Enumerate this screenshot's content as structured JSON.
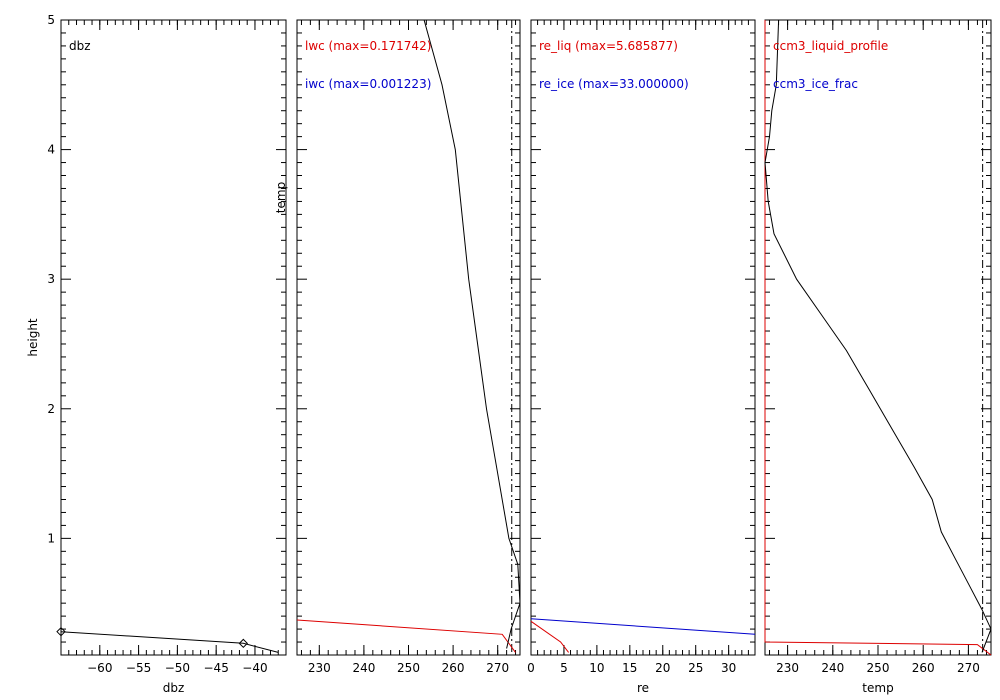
{
  "chart_data": [
    {
      "type": "line",
      "title": "",
      "xlabel": "dbz",
      "ylabel": "height",
      "xlim": [
        -65,
        -36
      ],
      "ylim": [
        0.1,
        5
      ],
      "xticks": [
        -60,
        -55,
        -50,
        -45,
        -40
      ],
      "yticks": [
        1,
        2,
        3,
        4,
        5
      ],
      "legend_position": "top-left",
      "series": [
        {
          "name": "dbz",
          "label_color": "#000000",
          "color": "#000000",
          "marker": "diamond",
          "points": [
            {
              "x": -65,
              "y": 0.28,
              "marker": true
            },
            {
              "x": -41.5,
              "y": 0.19,
              "marker": true
            },
            {
              "x": -37,
              "y": 0.12,
              "marker": false
            }
          ]
        }
      ]
    },
    {
      "type": "line",
      "title": "",
      "xlabel": "",
      "ylabel": "temp",
      "xlim": [
        225,
        275
      ],
      "ylim": [
        0.1,
        5
      ],
      "xticks": [
        230,
        240,
        250,
        260,
        270
      ],
      "yticks": [
        1,
        2,
        3,
        4,
        5
      ],
      "legend_position": "top-left",
      "vlines": [
        273.15
      ],
      "legend_only": [
        {
          "name": "iwc (max=0.001223)",
          "color": "#0000cc"
        }
      ],
      "series": [
        {
          "name": "lwc (max=0.171742)",
          "color": "#dd0000",
          "points": [
            {
              "x": 225,
              "y": 0.37
            },
            {
              "x": 271,
              "y": 0.26
            },
            {
              "x": 274,
              "y": 0.12
            }
          ]
        },
        {
          "name": "",
          "color": "#000000",
          "points": [
            {
              "x": 253.5,
              "y": 5.0
            },
            {
              "x": 257.5,
              "y": 4.5
            },
            {
              "x": 260.5,
              "y": 4.0
            },
            {
              "x": 262,
              "y": 3.5
            },
            {
              "x": 263.5,
              "y": 3.0
            },
            {
              "x": 265.5,
              "y": 2.5
            },
            {
              "x": 267.5,
              "y": 2.0
            },
            {
              "x": 270,
              "y": 1.5
            },
            {
              "x": 272.5,
              "y": 1.0
            },
            {
              "x": 274.5,
              "y": 0.8
            },
            {
              "x": 275,
              "y": 0.5
            },
            {
              "x": 273,
              "y": 0.3
            },
            {
              "x": 272,
              "y": 0.15
            }
          ]
        }
      ]
    },
    {
      "type": "line",
      "title": "",
      "xlabel": "re",
      "ylabel": "",
      "xlim": [
        0,
        34
      ],
      "ylim": [
        0.1,
        5
      ],
      "xticks": [
        0,
        5,
        10,
        15,
        20,
        25,
        30
      ],
      "yticks": [
        1,
        2,
        3,
        4,
        5
      ],
      "legend_position": "top-left",
      "series": [
        {
          "name": "re_liq (max=5.685877)",
          "color": "#dd0000",
          "points": [
            {
              "x": 0,
              "y": 0.36
            },
            {
              "x": 4.5,
              "y": 0.2
            },
            {
              "x": 5.7,
              "y": 0.12
            }
          ]
        },
        {
          "name": "re_ice (max=33.000000)",
          "color": "#0000cc",
          "points": [
            {
              "x": 0,
              "y": 0.38
            },
            {
              "x": 34,
              "y": 0.26
            }
          ]
        }
      ]
    },
    {
      "type": "line",
      "title": "",
      "xlabel": "temp",
      "ylabel": "",
      "xlim": [
        225,
        275
      ],
      "ylim": [
        0.1,
        5
      ],
      "xticks": [
        230,
        240,
        250,
        260,
        270
      ],
      "yticks": [
        1,
        2,
        3,
        4,
        5
      ],
      "legend_position": "top-left",
      "vlines": [
        273.15
      ],
      "legend_only": [
        {
          "name": "ccm3_ice_frac",
          "color": "#0000cc"
        }
      ],
      "series": [
        {
          "name": "ccm3_liquid_profile",
          "color": "#dd0000",
          "points": [
            {
              "x": 225,
              "y": 5.0
            },
            {
              "x": 225,
              "y": 0.2
            },
            {
              "x": 272,
              "y": 0.18
            },
            {
              "x": 275,
              "y": 0.1
            }
          ]
        },
        {
          "name": "",
          "color": "#000000",
          "points": [
            {
              "x": 228,
              "y": 5.0
            },
            {
              "x": 227.5,
              "y": 4.5
            },
            {
              "x": 226.5,
              "y": 4.3
            },
            {
              "x": 226,
              "y": 4.1
            },
            {
              "x": 225,
              "y": 3.9
            },
            {
              "x": 225.7,
              "y": 3.6
            },
            {
              "x": 227,
              "y": 3.35
            },
            {
              "x": 232,
              "y": 3.0
            },
            {
              "x": 238,
              "y": 2.7
            },
            {
              "x": 243,
              "y": 2.45
            },
            {
              "x": 248,
              "y": 2.15
            },
            {
              "x": 253,
              "y": 1.85
            },
            {
              "x": 258,
              "y": 1.55
            },
            {
              "x": 262,
              "y": 1.3
            },
            {
              "x": 264,
              "y": 1.05
            },
            {
              "x": 267,
              "y": 0.85
            },
            {
              "x": 270,
              "y": 0.65
            },
            {
              "x": 273,
              "y": 0.45
            },
            {
              "x": 275,
              "y": 0.3
            },
            {
              "x": 273,
              "y": 0.12
            }
          ]
        }
      ]
    }
  ]
}
